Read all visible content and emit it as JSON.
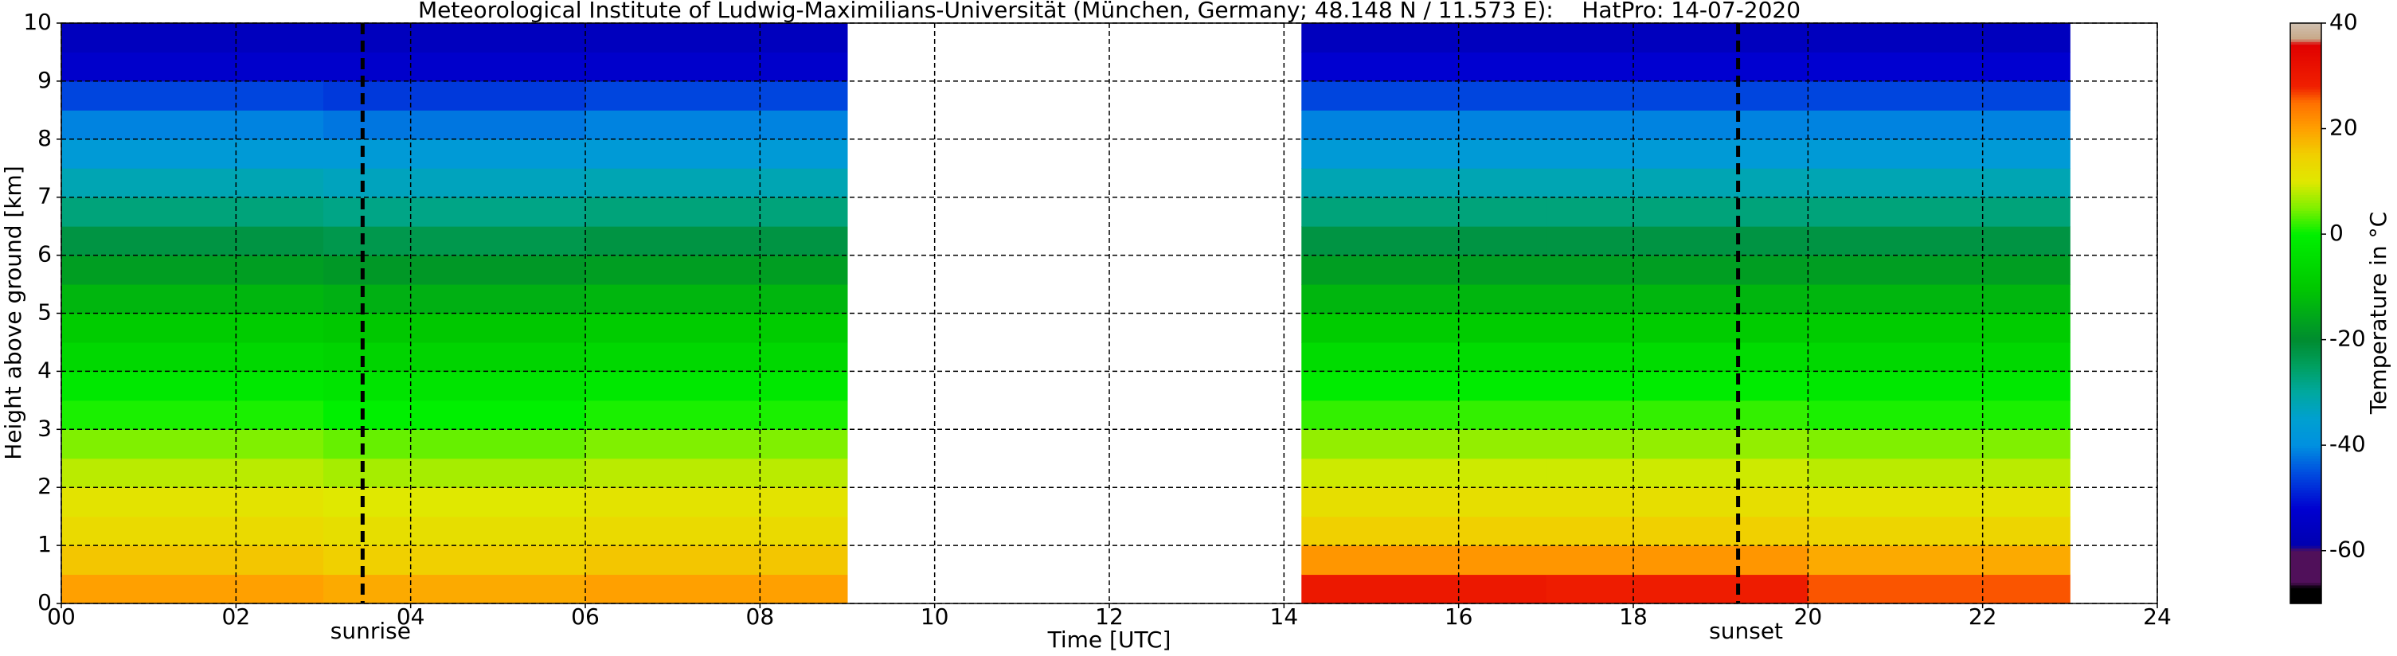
{
  "chart_data": {
    "type": "heatmap",
    "title": "Meteorological Institute of Ludwig-Maximilians-Universität (München, Germany; 48.148 N / 11.573 E):    HatPro: 14-07-2020",
    "xlabel": "Time [UTC]",
    "ylabel": "Height above ground [km]",
    "colorbar_label": "Temperature in °C",
    "xbins": [
      0,
      3,
      6,
      9,
      14.2,
      17,
      20,
      23
    ],
    "ybins": [
      0,
      0.5,
      1,
      1.5,
      2,
      2.5,
      3,
      3.5,
      4,
      4.5,
      5,
      5.5,
      6,
      6.5,
      7,
      7.5,
      8,
      8.5,
      9,
      9.5,
      10
    ],
    "values": [
      [
        20,
        19,
        20,
        null,
        30,
        29,
        26
      ],
      [
        16,
        15,
        16,
        null,
        21,
        21,
        19
      ],
      [
        13,
        12,
        13,
        null,
        15,
        15,
        14
      ],
      [
        11,
        10,
        11,
        null,
        12,
        12,
        11
      ],
      [
        8,
        7,
        8,
        null,
        9,
        9,
        8
      ],
      [
        5,
        4,
        5,
        null,
        6,
        6,
        5
      ],
      [
        1,
        0,
        1,
        null,
        2,
        2,
        1
      ],
      [
        -2,
        -3,
        -2,
        null,
        -1,
        -1,
        -2
      ],
      [
        -6,
        -7,
        -6,
        null,
        -5,
        -5,
        -6
      ],
      [
        -9,
        -10,
        -9,
        null,
        -9,
        -9,
        -9
      ],
      [
        -13,
        -14,
        -13,
        null,
        -13,
        -13,
        -13
      ],
      [
        -17,
        -18,
        -17,
        null,
        -17,
        -17,
        -17
      ],
      [
        -22,
        -23,
        -22,
        null,
        -22,
        -22,
        -22
      ],
      [
        -27,
        -28,
        -27,
        null,
        -27,
        -27,
        -27
      ],
      [
        -32,
        -33,
        -32,
        null,
        -32,
        -32,
        -32
      ],
      [
        -37,
        -37,
        -37,
        null,
        -37,
        -37,
        -37
      ],
      [
        -41,
        -42,
        -41,
        null,
        -41,
        -41,
        -41
      ],
      [
        -46,
        -47,
        -46,
        null,
        -46,
        -46,
        -46
      ],
      [
        -53,
        -53,
        -53,
        null,
        -52,
        -52,
        -52
      ],
      [
        -56,
        -56,
        -56,
        null,
        -56,
        -56,
        -56
      ]
    ],
    "colorscale": [
      [
        -70,
        "#000000"
      ],
      [
        -67,
        "#000000"
      ],
      [
        -66,
        "#50105a"
      ],
      [
        -60,
        "#50105a"
      ],
      [
        -59,
        "#0000b0"
      ],
      [
        -52,
        "#0000d0"
      ],
      [
        -45,
        "#0050e0"
      ],
      [
        -40,
        "#0090e0"
      ],
      [
        -35,
        "#00a0d0"
      ],
      [
        -30,
        "#00a8a0"
      ],
      [
        -25,
        "#00a060"
      ],
      [
        -20,
        "#008c30"
      ],
      [
        -10,
        "#00c800"
      ],
      [
        0,
        "#00f000"
      ],
      [
        5,
        "#80f000"
      ],
      [
        10,
        "#e0e800"
      ],
      [
        15,
        "#f0d000"
      ],
      [
        20,
        "#ffa000"
      ],
      [
        25,
        "#ff7000"
      ],
      [
        28,
        "#f02000"
      ],
      [
        36,
        "#e00000"
      ],
      [
        37,
        "#c8a888"
      ],
      [
        40,
        "#d0c0b0"
      ]
    ],
    "xlim": [
      0,
      24
    ],
    "xticks": [
      {
        "value": 0,
        "label": "00"
      },
      {
        "value": 2,
        "label": "02"
      },
      {
        "value": 4,
        "label": "04"
      },
      {
        "value": 6,
        "label": "06"
      },
      {
        "value": 8,
        "label": "08"
      },
      10,
      12,
      14,
      16,
      18,
      20,
      22,
      24
    ],
    "ylim": [
      0,
      10
    ],
    "yticks": [
      0,
      1,
      2,
      3,
      4,
      5,
      6,
      7,
      8,
      9,
      10
    ],
    "clim": [
      -70,
      40
    ],
    "cticks": [
      -60,
      -40,
      -20,
      0,
      20,
      40
    ],
    "grid": true,
    "annotations": [
      {
        "text": "sunrise",
        "x": 3.45
      },
      {
        "text": "sunset",
        "x": 19.2
      }
    ]
  }
}
